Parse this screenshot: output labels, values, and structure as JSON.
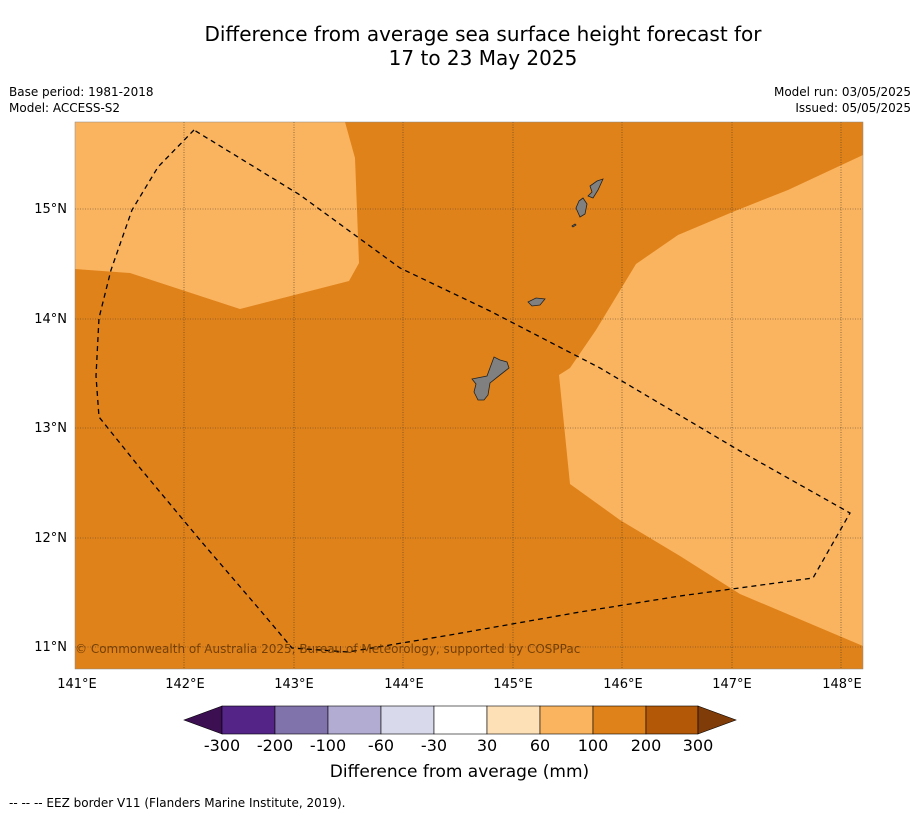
{
  "title": {
    "line1": "Difference from average sea surface height forecast for",
    "line2": "17 to 23 May 2025"
  },
  "meta_left": {
    "base_period": "Base period: 1981-2018",
    "model": "Model: ACCESS-S2"
  },
  "meta_right": {
    "model_run": "Model run: 03/05/2025",
    "issued": "Issued: 05/05/2025"
  },
  "map": {
    "lon_range": [
      141,
      148.2
    ],
    "lat_range": [
      10.8,
      15.8
    ],
    "lon_ticks": [
      "141°E",
      "142°E",
      "143°E",
      "144°E",
      "145°E",
      "146°E",
      "147°E",
      "148°E"
    ],
    "lat_ticks": [
      "15°N",
      "14°N",
      "13°N",
      "12°N",
      "11°N"
    ],
    "copyright": "© Commonwealth of Australia 2025, Bureau of Meteorology, supported by COSPPac",
    "colors": {
      "band_100_200": "#e0821a",
      "band_60_100": "#fab45f",
      "land": "#808080"
    }
  },
  "colorbar": {
    "title": "Difference from average (mm)",
    "ticks": [
      "-300",
      "-200",
      "-100",
      "-60",
      "-30",
      "30",
      "60",
      "100",
      "200",
      "300"
    ],
    "colors": [
      "#3b0f52",
      "#542586",
      "#8073ac",
      "#b2abd2",
      "#d8daeb",
      "#ffffff",
      "#fee0b6",
      "#fab45f",
      "#e0821a",
      "#b35806",
      "#7f3b08"
    ]
  },
  "footnote": "-- -- -- EEZ border V11 (Flanders Marine Institute, 2019)."
}
